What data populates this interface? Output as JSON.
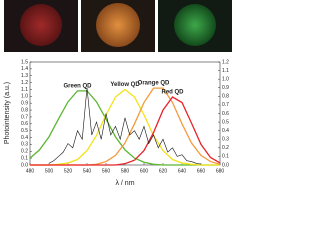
{
  "chart_data": {
    "type": "line",
    "y_label": "Photointensity (a.u.)",
    "x_label": "λ / nm",
    "x": [
      480,
      490,
      500,
      510,
      520,
      530,
      540,
      550,
      560,
      570,
      580,
      590,
      600,
      610,
      620,
      630,
      640,
      650,
      660,
      670,
      680
    ],
    "series": [
      {
        "name": "Green QD",
        "color": "#5cb531",
        "values": [
          0.1,
          0.22,
          0.41,
          0.67,
          0.92,
          1.08,
          1.08,
          0.92,
          0.67,
          0.41,
          0.22,
          0.1,
          0.04,
          0.01,
          0,
          0,
          0,
          0,
          0,
          0,
          0
        ]
      },
      {
        "name": "Yellow QD",
        "color": "#f2e21b",
        "values": [
          0,
          0,
          0,
          0.01,
          0.03,
          0.08,
          0.21,
          0.43,
          0.73,
          0.99,
          1.1,
          0.99,
          0.73,
          0.43,
          0.21,
          0.08,
          0.03,
          0.01,
          0,
          0,
          0
        ]
      },
      {
        "name": "Orange QD",
        "color": "#f39a3c",
        "values": [
          0,
          0,
          0,
          0,
          0,
          0,
          0,
          0.01,
          0.05,
          0.14,
          0.32,
          0.6,
          0.91,
          1.12,
          1.12,
          0.91,
          0.6,
          0.32,
          0.14,
          0.05,
          0.01
        ]
      },
      {
        "name": "Red QD",
        "color": "#e8232a",
        "values": [
          0,
          0,
          0,
          0,
          0,
          0,
          0,
          0,
          0,
          0,
          0.02,
          0.07,
          0.21,
          0.47,
          0.8,
          0.99,
          0.91,
          0.61,
          0.3,
          0.11,
          0.03
        ]
      },
      {
        "color": "#111111",
        "axis": "y2",
        "x": [
          500,
          505,
          510,
          515,
          520,
          525,
          530,
          535,
          540,
          545,
          550,
          555,
          560,
          565,
          570,
          575,
          580,
          585,
          590,
          595,
          600,
          605,
          610,
          615,
          620,
          625,
          630,
          635,
          640,
          645,
          650,
          655,
          660
        ],
        "values": [
          0.02,
          0.05,
          0.1,
          0.15,
          0.25,
          0.2,
          0.4,
          0.3,
          0.9,
          0.35,
          0.5,
          0.3,
          0.6,
          0.35,
          0.45,
          0.3,
          0.55,
          0.35,
          0.4,
          0.3,
          0.45,
          0.25,
          0.35,
          0.2,
          0.3,
          0.15,
          0.2,
          0.1,
          0.12,
          0.05,
          0.04,
          0.02,
          0.01
        ]
      }
    ],
    "xlim": [
      480,
      680
    ],
    "xticks": [
      480,
      500,
      520,
      540,
      560,
      580,
      600,
      620,
      640,
      660,
      680
    ],
    "ylim": [
      0,
      1.5
    ],
    "yticks": [
      {
        "value": 0,
        "label": "0.0"
      },
      0.1,
      0.2,
      0.3,
      0.4,
      0.5,
      0.6,
      0.7,
      0.8,
      0.9,
      {
        "value": 1,
        "label": "1.0"
      },
      1.1,
      1.2,
      1.3,
      1.4,
      1.5
    ],
    "y2lim": [
      0,
      1.2
    ],
    "y2ticks": [
      {
        "value": 0,
        "label": "0.0"
      },
      0.1,
      0.2,
      0.3,
      0.4,
      0.5,
      0.6,
      0.7,
      0.8,
      0.9,
      {
        "value": 1,
        "label": "1.0"
      },
      1.1,
      1.2
    ]
  }
}
